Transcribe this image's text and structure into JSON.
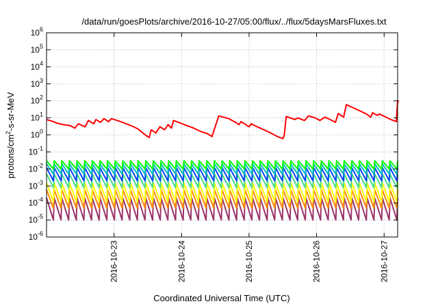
{
  "chart_data": {
    "type": "line",
    "title": "/data/run/goesPlots/archive/2016-10-27/05:00/flux/../flux/5daysMarsFluxes.txt",
    "xlabel": "Coordinated Universal Time (UTC)",
    "ylabel": {
      "prefix": "protons/cm",
      "sup": "2",
      "suffix": "-s-sr-MeV"
    },
    "yscale": "log",
    "ylim_exp": [
      -6,
      6
    ],
    "ytick_exponents": [
      -6,
      -5,
      -4,
      -3,
      -2,
      -1,
      0,
      1,
      2,
      3,
      4,
      5,
      6
    ],
    "ytick_base": "10",
    "xlim_days": [
      0,
      5.2
    ],
    "xticks": [
      {
        "label": "2016-10-23",
        "day": 1
      },
      {
        "label": "2016-10-24",
        "day": 2
      },
      {
        "label": "2016-10-25",
        "day": 3
      },
      {
        "label": "2016-10-26",
        "day": 4
      },
      {
        "label": "2016-10-27",
        "day": 5
      }
    ],
    "grid": true,
    "series": [
      {
        "color": "#ff0000",
        "points": [
          [
            0.0,
            8
          ],
          [
            0.1,
            6
          ],
          [
            0.15,
            5
          ],
          [
            0.25,
            4
          ],
          [
            0.35,
            3.5
          ],
          [
            0.42,
            2.5
          ],
          [
            0.47,
            4.5
          ],
          [
            0.57,
            3
          ],
          [
            0.62,
            7
          ],
          [
            0.7,
            4.5
          ],
          [
            0.73,
            8
          ],
          [
            0.8,
            5.5
          ],
          [
            0.85,
            9
          ],
          [
            0.92,
            6
          ],
          [
            0.96,
            9
          ],
          [
            1.05,
            7
          ],
          [
            1.15,
            5
          ],
          [
            1.25,
            3.5
          ],
          [
            1.35,
            2.3
          ],
          [
            1.45,
            1.1
          ],
          [
            1.52,
            0.7
          ],
          [
            1.55,
            2
          ],
          [
            1.62,
            1.3
          ],
          [
            1.68,
            3
          ],
          [
            1.75,
            2
          ],
          [
            1.8,
            4
          ],
          [
            1.85,
            2.5
          ],
          [
            1.88,
            7
          ],
          [
            1.98,
            5
          ],
          [
            2.08,
            3.5
          ],
          [
            2.18,
            2.5
          ],
          [
            2.28,
            1.6
          ],
          [
            2.38,
            1.2
          ],
          [
            2.45,
            0.8
          ],
          [
            2.55,
            13
          ],
          [
            2.7,
            9
          ],
          [
            2.8,
            5.5
          ],
          [
            2.85,
            4
          ],
          [
            2.88,
            6
          ],
          [
            2.95,
            4
          ],
          [
            3.0,
            3
          ],
          [
            3.03,
            4.5
          ],
          [
            3.12,
            3
          ],
          [
            3.22,
            2
          ],
          [
            3.32,
            1.3
          ],
          [
            3.42,
            0.8
          ],
          [
            3.5,
            0.6
          ],
          [
            3.52,
            0.9
          ],
          [
            3.55,
            12
          ],
          [
            3.68,
            8
          ],
          [
            3.72,
            10
          ],
          [
            3.82,
            7
          ],
          [
            3.88,
            13
          ],
          [
            3.98,
            10
          ],
          [
            4.05,
            7
          ],
          [
            4.12,
            11
          ],
          [
            4.2,
            8
          ],
          [
            4.28,
            5.5
          ],
          [
            4.32,
            18
          ],
          [
            4.4,
            11
          ],
          [
            4.44,
            60
          ],
          [
            4.55,
            38
          ],
          [
            4.65,
            25
          ],
          [
            4.75,
            16
          ],
          [
            4.8,
            11
          ],
          [
            4.83,
            20
          ],
          [
            4.9,
            14
          ],
          [
            4.93,
            17
          ],
          [
            5.03,
            11
          ],
          [
            5.1,
            8
          ],
          [
            5.18,
            6
          ],
          [
            5.2,
            100
          ],
          [
            5.22,
            90
          ]
        ]
      },
      {
        "color": "#00ff00",
        "high": 0.03,
        "low": 0.01
      },
      {
        "color": "#00bbbb",
        "high": 0.02,
        "low": 0.005
      },
      {
        "color": "#0044ff",
        "high": 0.012,
        "low": 0.002
      },
      {
        "color": "#44dd88",
        "high": 0.005,
        "low": 0.0008
      },
      {
        "color": "#ffff00",
        "high": 0.0015,
        "low": 0.00012
      },
      {
        "color": "#ff8800",
        "high": 0.0006,
        "low": 5e-05
      },
      {
        "color": "#993366",
        "high": 0.0002,
        "low": 1e-05
      }
    ],
    "sawtooth_cycles": 46
  }
}
